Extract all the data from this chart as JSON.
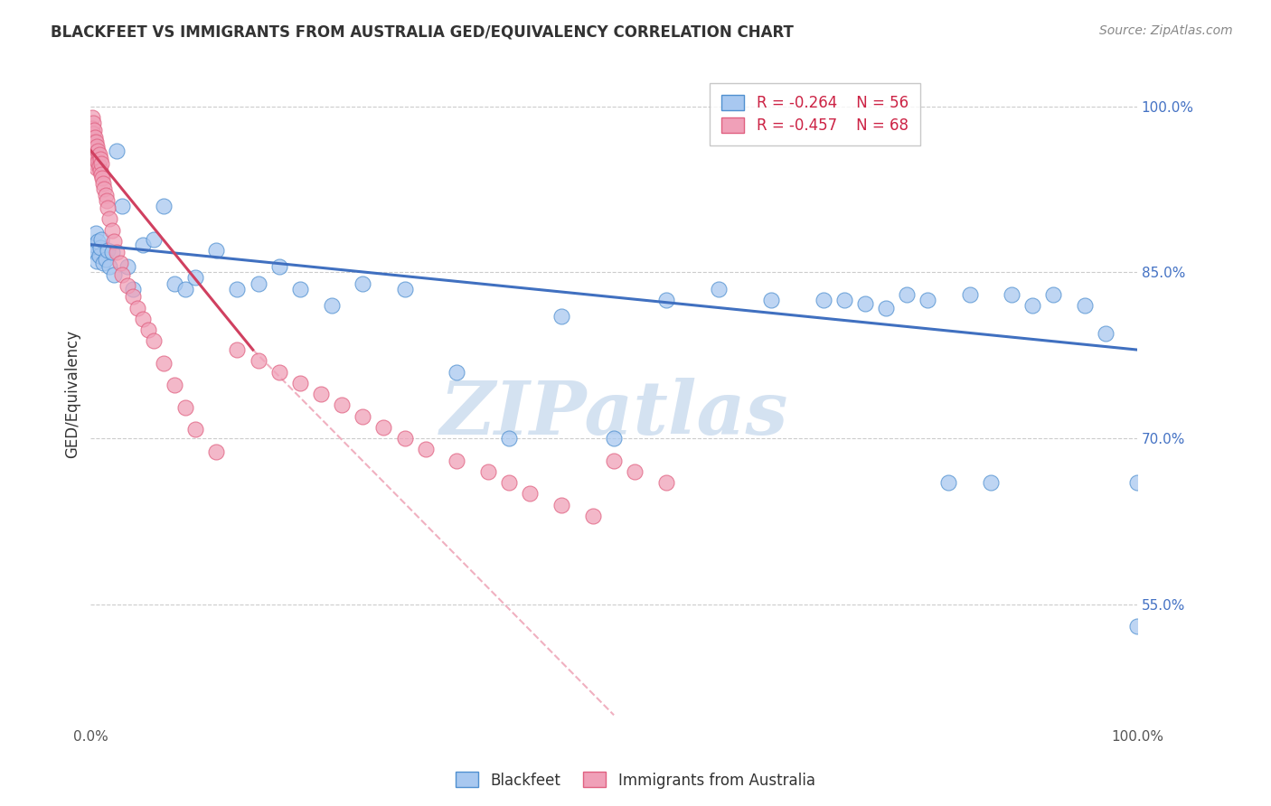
{
  "title": "BLACKFEET VS IMMIGRANTS FROM AUSTRALIA GED/EQUIVALENCY CORRELATION CHART",
  "source": "Source: ZipAtlas.com",
  "ylabel": "GED/Equivalency",
  "legend_r1": "R = -0.264",
  "legend_n1": "N = 56",
  "legend_r2": "R = -0.457",
  "legend_n2": "N = 68",
  "legend_label1": "Blackfeet",
  "legend_label2": "Immigrants from Australia",
  "color_blue": "#A8C8F0",
  "color_blue_dark": "#5090D0",
  "color_blue_line": "#4070C0",
  "color_pink": "#F0A0B8",
  "color_pink_dark": "#E06080",
  "color_pink_line": "#D04060",
  "color_dashed": "#F0B0C0",
  "background_color": "#FFFFFF",
  "watermark": "ZIPatlas",
  "watermark_color": "#D0DFF0",
  "blue_scatter_x": [
    0.002,
    0.003,
    0.004,
    0.005,
    0.006,
    0.007,
    0.008,
    0.009,
    0.01,
    0.012,
    0.014,
    0.016,
    0.018,
    0.02,
    0.022,
    0.025,
    0.03,
    0.035,
    0.04,
    0.05,
    0.06,
    0.07,
    0.08,
    0.09,
    0.1,
    0.12,
    0.14,
    0.16,
    0.18,
    0.2,
    0.23,
    0.26,
    0.3,
    0.35,
    0.4,
    0.45,
    0.5,
    0.55,
    0.6,
    0.65,
    0.7,
    0.72,
    0.74,
    0.76,
    0.78,
    0.8,
    0.82,
    0.84,
    0.86,
    0.88,
    0.9,
    0.92,
    0.95,
    0.97,
    1.0,
    1.0
  ],
  "blue_scatter_y": [
    0.87,
    0.875,
    0.868,
    0.885,
    0.86,
    0.878,
    0.865,
    0.872,
    0.88,
    0.858,
    0.862,
    0.87,
    0.855,
    0.868,
    0.848,
    0.96,
    0.91,
    0.855,
    0.835,
    0.875,
    0.88,
    0.91,
    0.84,
    0.835,
    0.845,
    0.87,
    0.835,
    0.84,
    0.855,
    0.835,
    0.82,
    0.84,
    0.835,
    0.76,
    0.7,
    0.81,
    0.7,
    0.825,
    0.835,
    0.825,
    0.825,
    0.825,
    0.822,
    0.818,
    0.83,
    0.825,
    0.66,
    0.83,
    0.66,
    0.83,
    0.82,
    0.83,
    0.82,
    0.795,
    0.66,
    0.53
  ],
  "pink_scatter_x": [
    0.001,
    0.001,
    0.001,
    0.002,
    0.002,
    0.002,
    0.003,
    0.003,
    0.003,
    0.004,
    0.004,
    0.004,
    0.005,
    0.005,
    0.005,
    0.006,
    0.006,
    0.006,
    0.007,
    0.007,
    0.008,
    0.008,
    0.009,
    0.009,
    0.01,
    0.01,
    0.011,
    0.012,
    0.013,
    0.014,
    0.015,
    0.016,
    0.018,
    0.02,
    0.022,
    0.025,
    0.028,
    0.03,
    0.035,
    0.04,
    0.045,
    0.05,
    0.055,
    0.06,
    0.07,
    0.08,
    0.09,
    0.1,
    0.12,
    0.14,
    0.16,
    0.18,
    0.2,
    0.22,
    0.24,
    0.26,
    0.28,
    0.3,
    0.32,
    0.35,
    0.38,
    0.4,
    0.42,
    0.45,
    0.48,
    0.5,
    0.52,
    0.55
  ],
  "pink_scatter_y": [
    0.99,
    0.98,
    0.97,
    0.985,
    0.975,
    0.965,
    0.978,
    0.968,
    0.958,
    0.972,
    0.962,
    0.952,
    0.968,
    0.958,
    0.948,
    0.964,
    0.954,
    0.944,
    0.96,
    0.95,
    0.956,
    0.946,
    0.952,
    0.942,
    0.948,
    0.938,
    0.935,
    0.93,
    0.925,
    0.92,
    0.915,
    0.908,
    0.898,
    0.888,
    0.878,
    0.868,
    0.858,
    0.848,
    0.838,
    0.828,
    0.818,
    0.808,
    0.798,
    0.788,
    0.768,
    0.748,
    0.728,
    0.708,
    0.688,
    0.78,
    0.77,
    0.76,
    0.75,
    0.74,
    0.73,
    0.72,
    0.71,
    0.7,
    0.69,
    0.68,
    0.67,
    0.66,
    0.65,
    0.64,
    0.63,
    0.68,
    0.67,
    0.66
  ],
  "blue_trend_x0": 0.0,
  "blue_trend_x1": 1.0,
  "blue_trend_y0": 0.875,
  "blue_trend_y1": 0.78,
  "pink_trend_x0": 0.0,
  "pink_trend_x1": 0.155,
  "pink_trend_y0": 0.96,
  "pink_trend_y1": 0.78,
  "dashed_trend_x0": 0.155,
  "dashed_trend_x1": 0.5,
  "dashed_trend_y0": 0.78,
  "dashed_trend_y1": 0.45,
  "xlim": [
    0.0,
    1.0
  ],
  "ylim": [
    0.44,
    1.04
  ],
  "yticks": [
    0.55,
    0.7,
    0.85,
    1.0
  ],
  "ytick_labels": [
    "55.0%",
    "70.0%",
    "85.0%",
    "100.0%"
  ]
}
